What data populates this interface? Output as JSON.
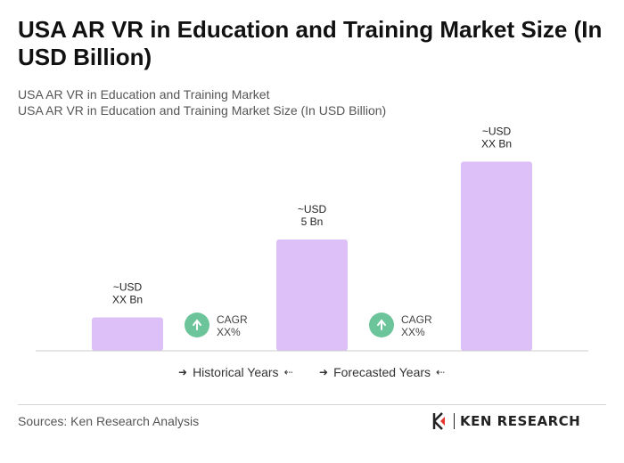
{
  "title": "USA AR VR in Education and Training Market Size (In USD Billion)",
  "subtitle_1": "USA AR VR in Education and Training Market",
  "subtitle_2": "USA AR VR in Education and Training Market Size (In USD Billion)",
  "chart_data": {
    "type": "bar",
    "categories": [
      "",
      "",
      ""
    ],
    "values": [
      1.5,
      5,
      8.5
    ],
    "bar_labels": [
      [
        "~USD",
        "XX Bn"
      ],
      [
        "~USD",
        "5 Bn"
      ],
      [
        "~USD",
        "XX Bn"
      ]
    ],
    "cagr_labels": [
      [
        "CAGR",
        "XX%"
      ],
      [
        "CAGR",
        "XX%"
      ]
    ],
    "ylim": [
      0,
      10
    ],
    "grid": false,
    "colors": {
      "bar": "#dcc0f7",
      "cagr_circle": "#6cc49a",
      "baseline": "#cccccc"
    }
  },
  "legend": {
    "historical": "Historical Years",
    "forecasted": "Forecasted Years",
    "arrow_right": "➜",
    "arrow_left": "⇠"
  },
  "sources": "Sources: Ken Research Analysis",
  "logo": {
    "text": "KEN RESEARCH"
  }
}
